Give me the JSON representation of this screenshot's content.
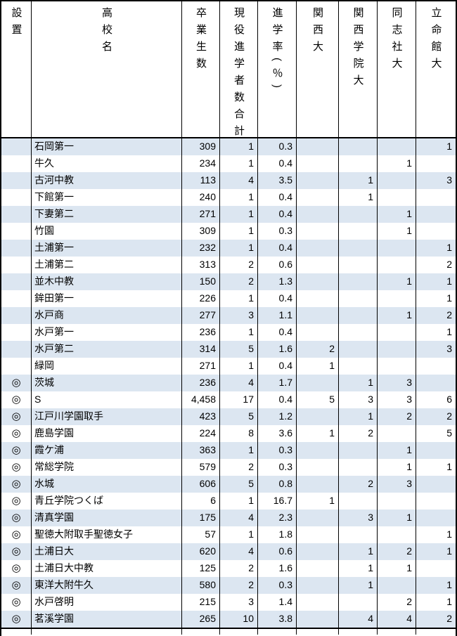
{
  "colors": {
    "stripe": "#dce6f1",
    "border": "#000000",
    "background": "#ffffff",
    "text": "#000000"
  },
  "table": {
    "columns": [
      {
        "key": "establishment",
        "label": "設置"
      },
      {
        "key": "school_name",
        "label": "高校名"
      },
      {
        "key": "graduates",
        "label": "卒業生数"
      },
      {
        "key": "current_admits_total",
        "label": "現役進学者数合計"
      },
      {
        "key": "admission_rate_pct",
        "label": "進学率(％)"
      },
      {
        "key": "kansai_univ",
        "label": "関西大"
      },
      {
        "key": "kwansei_gakuin_univ",
        "label": "関西学院大"
      },
      {
        "key": "doshisha_univ",
        "label": "同志社大"
      },
      {
        "key": "ritsumeikan_univ",
        "label": "立命館大"
      }
    ],
    "private_mark": "◎",
    "rows": [
      [
        "",
        "石岡第一",
        "309",
        "1",
        "0.3",
        "",
        "",
        "",
        "1"
      ],
      [
        "",
        "牛久",
        "234",
        "1",
        "0.4",
        "",
        "",
        "1",
        ""
      ],
      [
        "",
        "古河中教",
        "113",
        "4",
        "3.5",
        "",
        "1",
        "",
        "3"
      ],
      [
        "",
        "下館第一",
        "240",
        "1",
        "0.4",
        "",
        "1",
        "",
        ""
      ],
      [
        "",
        "下妻第二",
        "271",
        "1",
        "0.4",
        "",
        "",
        "1",
        ""
      ],
      [
        "",
        "竹園",
        "309",
        "1",
        "0.3",
        "",
        "",
        "1",
        ""
      ],
      [
        "",
        "土浦第一",
        "232",
        "1",
        "0.4",
        "",
        "",
        "",
        "1"
      ],
      [
        "",
        "土浦第二",
        "313",
        "2",
        "0.6",
        "",
        "",
        "",
        "2"
      ],
      [
        "",
        "並木中教",
        "150",
        "2",
        "1.3",
        "",
        "",
        "1",
        "1"
      ],
      [
        "",
        "鉾田第一",
        "226",
        "1",
        "0.4",
        "",
        "",
        "",
        "1"
      ],
      [
        "",
        "水戸商",
        "277",
        "3",
        "1.1",
        "",
        "",
        "1",
        "2"
      ],
      [
        "",
        "水戸第一",
        "236",
        "1",
        "0.4",
        "",
        "",
        "",
        "1"
      ],
      [
        "",
        "水戸第二",
        "314",
        "5",
        "1.6",
        "2",
        "",
        "",
        "3"
      ],
      [
        "",
        "緑岡",
        "271",
        "1",
        "0.4",
        "1",
        "",
        "",
        ""
      ],
      [
        "◎",
        "茨城",
        "236",
        "4",
        "1.7",
        "",
        "1",
        "3",
        ""
      ],
      [
        "◎",
        "S",
        "4,458",
        "17",
        "0.4",
        "5",
        "3",
        "3",
        "6"
      ],
      [
        "◎",
        "江戸川学園取手",
        "423",
        "5",
        "1.2",
        "",
        "1",
        "2",
        "2"
      ],
      [
        "◎",
        "鹿島学園",
        "224",
        "8",
        "3.6",
        "1",
        "2",
        "",
        "5"
      ],
      [
        "◎",
        "霞ケ浦",
        "363",
        "1",
        "0.3",
        "",
        "",
        "1",
        ""
      ],
      [
        "◎",
        "常総学院",
        "579",
        "2",
        "0.3",
        "",
        "",
        "1",
        "1"
      ],
      [
        "◎",
        "水城",
        "606",
        "5",
        "0.8",
        "",
        "2",
        "3",
        ""
      ],
      [
        "◎",
        "青丘学院つくば",
        "6",
        "1",
        "16.7",
        "1",
        "",
        "",
        ""
      ],
      [
        "◎",
        "清真学園",
        "175",
        "4",
        "2.3",
        "",
        "3",
        "1",
        ""
      ],
      [
        "◎",
        "聖徳大附取手聖徳女子",
        "57",
        "1",
        "1.8",
        "",
        "",
        "",
        "1"
      ],
      [
        "◎",
        "土浦日大",
        "620",
        "4",
        "0.6",
        "",
        "1",
        "2",
        "1"
      ],
      [
        "◎",
        "土浦日大中教",
        "125",
        "2",
        "1.6",
        "",
        "1",
        "1",
        ""
      ],
      [
        "◎",
        "東洋大附牛久",
        "580",
        "2",
        "0.3",
        "",
        "1",
        "",
        "1"
      ],
      [
        "◎",
        "水戸啓明",
        "215",
        "3",
        "1.4",
        "",
        "",
        "2",
        "1"
      ],
      [
        "◎",
        "茗溪学園",
        "265",
        "10",
        "3.8",
        "",
        "4",
        "4",
        "2"
      ]
    ]
  }
}
